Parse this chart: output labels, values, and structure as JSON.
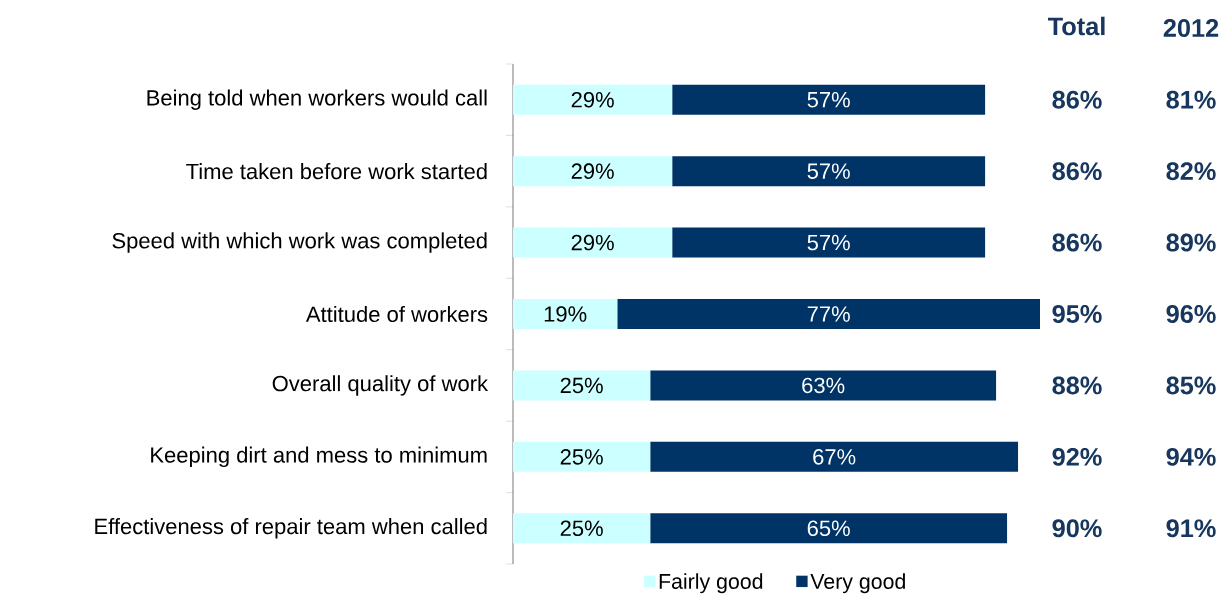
{
  "chart_data": {
    "type": "bar",
    "orientation": "horizontal",
    "stacked": true,
    "categories": [
      "Being told when workers would call",
      "Time taken before work started",
      "Speed with which work was completed",
      "Attitude of workers",
      "Overall quality of work",
      "Keeping dirt and mess to minimum",
      "Effectiveness of repair team when called"
    ],
    "series": [
      {
        "name": "Fairly good",
        "color": "#ccffff",
        "values": [
          29,
          29,
          29,
          19,
          25,
          25,
          25
        ],
        "value_labels": [
          "29%",
          "29%",
          "29%",
          "19%",
          "25%",
          "25%",
          "25%"
        ]
      },
      {
        "name": "Very good",
        "color": "#003366",
        "values": [
          57,
          57,
          57,
          77,
          63,
          67,
          65
        ],
        "value_labels": [
          "57%",
          "57%",
          "57%",
          "77%",
          "63%",
          "67%",
          "65%"
        ]
      }
    ],
    "totals": [
      "86%",
      "86%",
      "86%",
      "95%",
      "88%",
      "92%",
      "90%"
    ],
    "annotations": [
      "Total",
      "2012",
      "81%",
      "82%",
      "89%",
      "96%",
      "85%",
      "94%",
      "91%"
    ],
    "legend": "bottom"
  }
}
